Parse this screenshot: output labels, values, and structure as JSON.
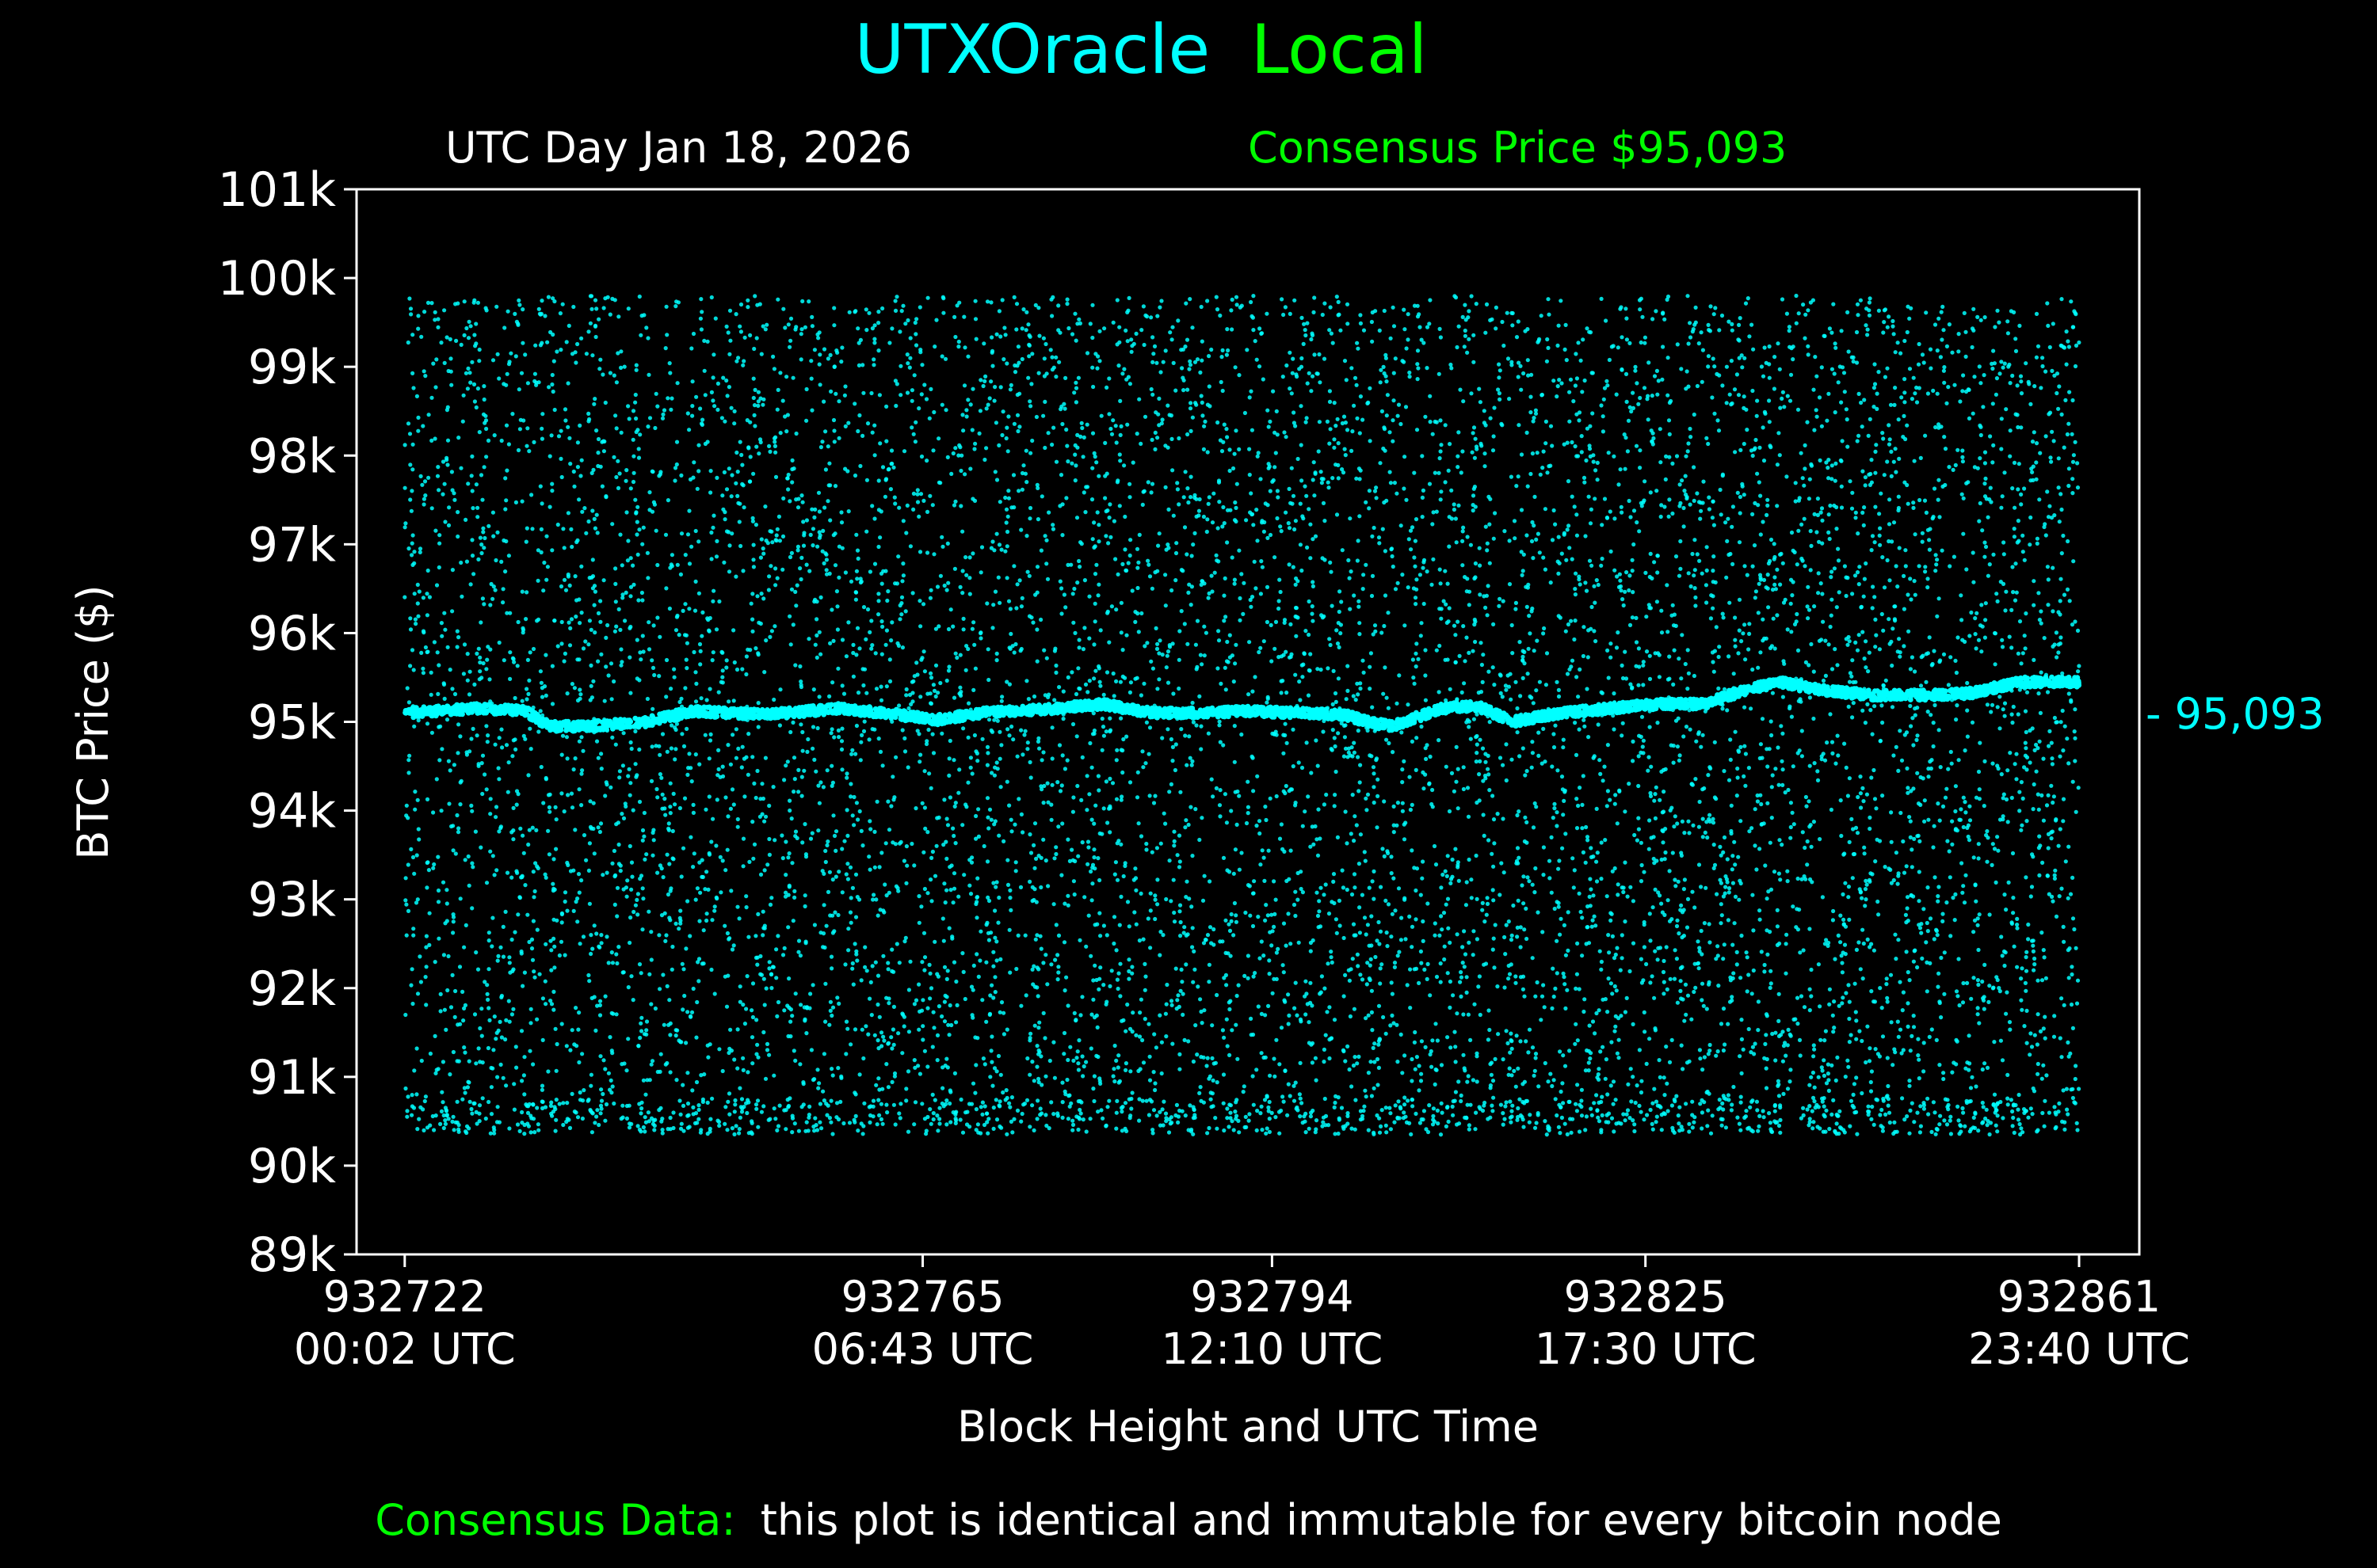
{
  "title": {
    "part1": "UTXOracle",
    "part2": "Local"
  },
  "subtitle_left": "UTC Day Jan 18, 2026",
  "subtitle_right": "Consensus Price $95,093",
  "footer": {
    "label": "Consensus Data:",
    "text": "this plot is identical and immutable for every bitcoin node"
  },
  "colors": {
    "title_cyan": "#00ffff",
    "accent_green": "#00ff00",
    "points": "#00ffff",
    "axes": "#ffffff",
    "background": "#000000"
  },
  "chart_data": {
    "type": "scatter",
    "xlabel": "Block Height and UTC Time",
    "ylabel": "BTC Price ($)",
    "ylim": [
      89000,
      101000
    ],
    "yticks": [
      89000,
      90000,
      91000,
      92000,
      93000,
      94000,
      95000,
      96000,
      97000,
      98000,
      99000,
      100000,
      101000
    ],
    "ytick_labels": [
      "89k",
      "90k",
      "91k",
      "92k",
      "93k",
      "94k",
      "95k",
      "96k",
      "97k",
      "98k",
      "99k",
      "100k",
      "101k"
    ],
    "xlim": [
      932718,
      932866
    ],
    "xticks": [
      {
        "block": 932722,
        "label_block": "932722",
        "label_time": "00:02 UTC"
      },
      {
        "block": 932765,
        "label_block": "932765",
        "label_time": "06:43 UTC"
      },
      {
        "block": 932794,
        "label_block": "932794",
        "label_time": "12:10 UTC"
      },
      {
        "block": 932825,
        "label_block": "932825",
        "label_time": "17:30 UTC"
      },
      {
        "block": 932861,
        "label_block": "932861",
        "label_time": "23:40 UTC"
      }
    ],
    "consensus_price": 95093,
    "consensus_label": "- 95,093",
    "scatter_range": {
      "y_min": 90350,
      "y_max": 99800
    },
    "series": [
      {
        "consensus_band": {
          "x": [
            932722,
            932728,
            932732,
            932734,
            932737,
            932742,
            932746,
            932752,
            932758,
            932762,
            932766,
            932770,
            932776,
            932780,
            932784,
            932788,
            932792,
            932796,
            932800,
            932802,
            932804,
            932806,
            932808,
            932811,
            932814,
            932818,
            932822,
            932826,
            932830,
            932832,
            932836,
            932840,
            932844,
            932848,
            932852,
            932856,
            932860
          ],
          "y": [
            95100,
            95150,
            95120,
            94950,
            94950,
            95000,
            95120,
            95080,
            95150,
            95100,
            95020,
            95100,
            95150,
            95200,
            95100,
            95100,
            95120,
            95100,
            95080,
            95000,
            94950,
            95050,
            95150,
            95180,
            95000,
            95100,
            95150,
            95200,
            95200,
            95300,
            95450,
            95350,
            95300,
            95300,
            95320,
            95450,
            95450
          ]
        }
      }
    ]
  }
}
